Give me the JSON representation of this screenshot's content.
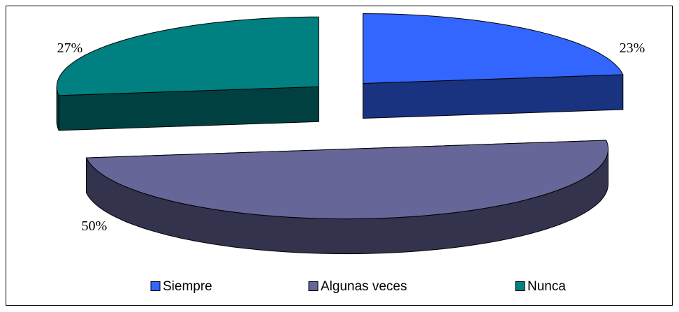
{
  "chart_data": {
    "type": "pie3d",
    "categories": [
      "Siempre",
      "Algunas veces",
      "Nunca"
    ],
    "values": [
      23,
      50,
      27
    ],
    "value_labels": [
      "23%",
      "50%",
      "27%"
    ],
    "colors": [
      "#3366ff",
      "#666699",
      "#008080"
    ]
  }
}
